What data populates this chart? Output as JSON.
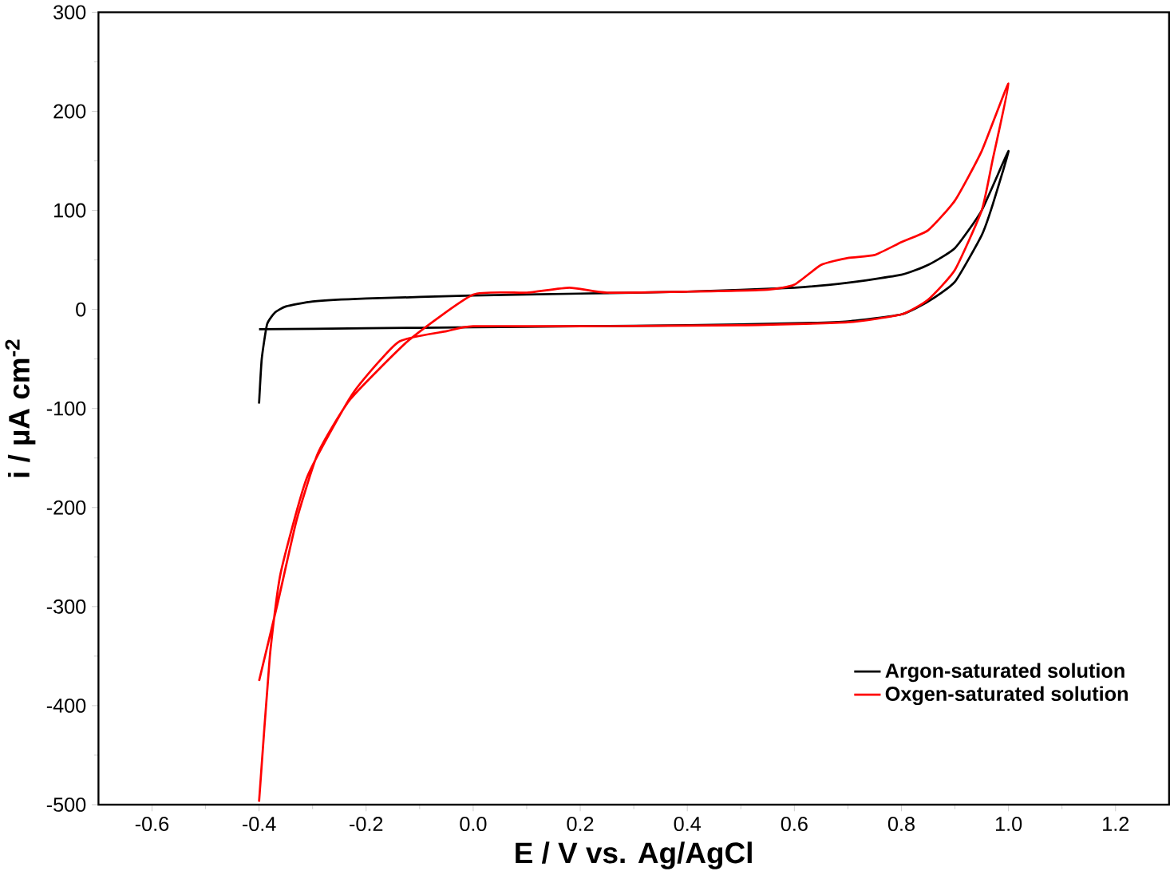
{
  "chart_data": {
    "type": "line",
    "xlabel": "E / V vs. Ag/AgCl",
    "ylabel": "i / µA cm$^{-2}$",
    "legend": "bottom right",
    "grid": false,
    "marker": "none",
    "line_style": "solid",
    "xlim": [
      -0.7,
      1.3
    ],
    "ylim": [
      -500,
      300
    ],
    "xticks": [
      {
        "value": -0.6,
        "label": "-0.6"
      },
      {
        "value": -0.4,
        "label": "-0.4"
      },
      {
        "value": -0.2,
        "label": "-0.2"
      },
      {
        "value": 0.0,
        "label": "0.0"
      },
      {
        "value": 0.2,
        "label": "0.2"
      },
      {
        "value": 0.4,
        "label": "0.4"
      },
      {
        "value": 0.6,
        "label": "0.6"
      },
      {
        "value": 0.8,
        "label": "0.8"
      },
      {
        "value": 1.0,
        "label": "1.0"
      },
      {
        "value": 1.2,
        "label": "1.2"
      }
    ],
    "yticks": [
      -500,
      -400,
      -300,
      -200,
      -100,
      0,
      100,
      200,
      300
    ],
    "series": [
      {
        "name": "Argon-saturated solution",
        "color": "#000000",
        "x": [
          -0.4,
          -0.395,
          -0.385,
          -0.37,
          -0.35,
          -0.3,
          -0.2,
          0.0,
          0.2,
          0.4,
          0.6,
          0.7,
          0.8,
          0.85,
          0.9,
          0.95,
          1.0,
          0.97,
          0.95,
          0.9,
          0.85,
          0.8,
          0.7,
          0.6,
          0.4,
          0.2,
          0.0,
          -0.2,
          -0.4
        ],
        "values": [
          -95,
          -50,
          -15,
          -3,
          3,
          8,
          11,
          14,
          16,
          18,
          22,
          27,
          35,
          45,
          62,
          100,
          160,
          105,
          75,
          28,
          8,
          -5,
          -12,
          -14,
          -16,
          -17,
          -18,
          -19,
          -20
        ]
      },
      {
        "name": "Oxgen-saturated solution",
        "color": "#ff0000",
        "x": [
          -0.4,
          -0.365,
          -0.33,
          -0.29,
          -0.23,
          -0.12,
          0.0,
          0.1,
          0.18,
          0.25,
          0.4,
          0.55,
          0.6,
          0.65,
          0.7,
          0.75,
          0.8,
          0.85,
          0.9,
          0.95,
          1.0,
          0.97,
          0.95,
          0.9,
          0.85,
          0.8,
          0.7,
          0.5,
          0.2,
          0.0,
          -0.05,
          -0.14,
          -0.225,
          -0.31,
          -0.36,
          -0.38,
          -0.4
        ],
        "values": [
          -375,
          -296,
          -213,
          -145,
          -91,
          -31,
          15,
          17,
          22,
          17,
          18,
          20,
          25,
          45,
          52,
          55,
          68,
          80,
          110,
          160,
          228,
          150,
          100,
          40,
          10,
          -5,
          -13,
          -16,
          -17,
          -17,
          -22,
          -33,
          -85,
          -169,
          -267,
          -351,
          -497
        ]
      }
    ]
  }
}
